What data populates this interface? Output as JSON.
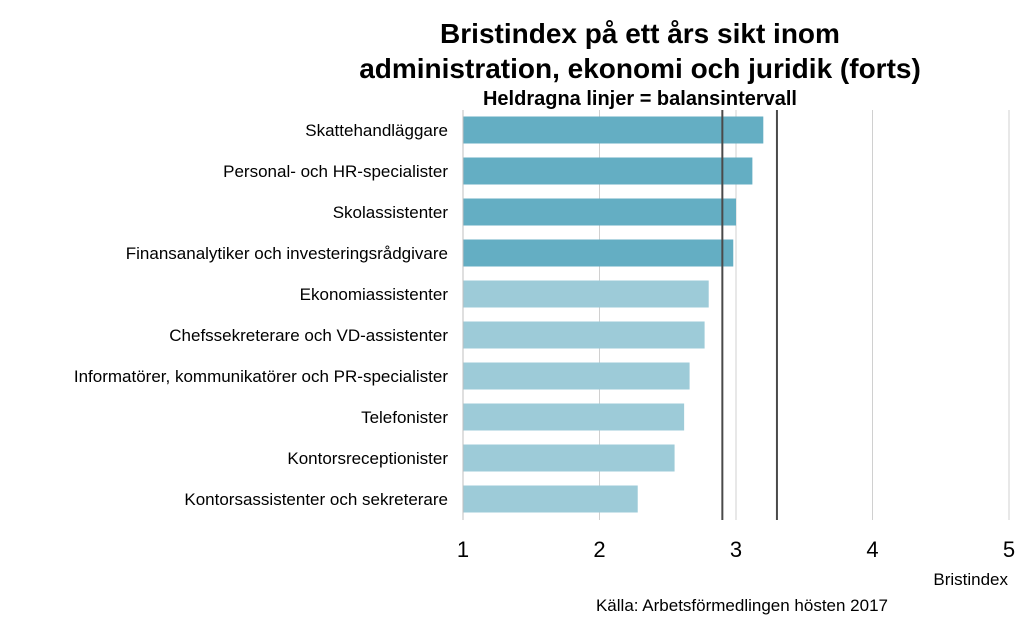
{
  "chart_data": {
    "type": "bar",
    "orientation": "horizontal",
    "title_lines": [
      "Bristindex på ett års sikt inom",
      "administration, ekonomi och juridik (forts)"
    ],
    "subtitle": "Heldragna linjer = balansintervall",
    "xlabel": "Bristindex",
    "source": "Källa: Arbetsförmedlingen hösten 2017",
    "xlim": [
      1,
      5
    ],
    "xticks": [
      "1",
      "2",
      "3",
      "4",
      "5"
    ],
    "grid": true,
    "balance_interval": [
      2.9,
      3.3
    ],
    "categories": [
      "Skattehandläggare",
      "Personal- och HR-specialister",
      "Skolassistenter",
      "Finansanalytiker och investeringsrådgivare",
      "Ekonomiassistenter",
      "Chefssekreterare och VD-assistenter",
      "Informatörer, kommunikatörer och PR-specialister",
      "Telefonister",
      "Kontorsreceptionister",
      "Kontorsassistenter och sekreterare"
    ],
    "values": [
      3.2,
      3.12,
      3.0,
      2.98,
      2.8,
      2.77,
      2.66,
      2.62,
      2.55,
      2.28
    ],
    "bar_colors": [
      "#64aec3",
      "#64aec3",
      "#64aec3",
      "#64aec3",
      "#9dcbd8",
      "#9dcbd8",
      "#9dcbd8",
      "#9dcbd8",
      "#9dcbd8",
      "#9dcbd8"
    ],
    "colors": {
      "shortage_bar": "#64aec3",
      "balance_bar": "#9dcbd8",
      "balance_line": "#4a4a4a",
      "grid": "#d0d0d0"
    }
  }
}
